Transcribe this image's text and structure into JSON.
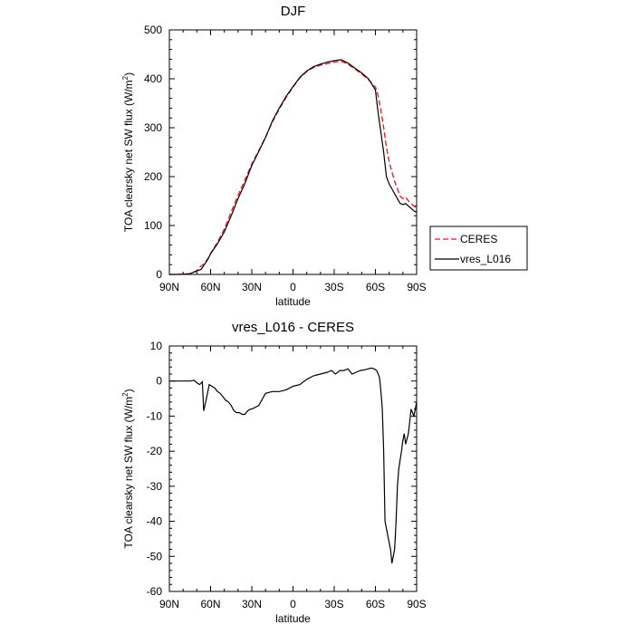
{
  "chart_data": [
    {
      "type": "line",
      "title": "DJF",
      "xlabel": "latitude",
      "ylabel": "TOA clearsky net SW flux (W/m",
      "ylabel_sup": "2",
      "ylabel_end": ")",
      "xlim": [
        90,
        -90
      ],
      "ylim": [
        0,
        500
      ],
      "xticks": [
        90,
        60,
        30,
        0,
        -30,
        -60,
        -90
      ],
      "xtick_labels": [
        "90N",
        "60N",
        "30N",
        "0",
        "30S",
        "60S",
        "90S"
      ],
      "yticks": [
        0,
        100,
        200,
        300,
        400,
        500
      ],
      "ytick_labels": [
        "0",
        "100",
        "200",
        "300",
        "400",
        "500"
      ],
      "legend_position": "right",
      "series": [
        {
          "name": "CERES",
          "color": "#e8141e",
          "dash": "dashed",
          "x": [
            90,
            85,
            80,
            75,
            70,
            67,
            65,
            62,
            60,
            55,
            50,
            45,
            40,
            35,
            30,
            25,
            20,
            15,
            10,
            5,
            0,
            -5,
            -10,
            -15,
            -20,
            -25,
            -30,
            -35,
            -40,
            -45,
            -50,
            -55,
            -60,
            -62,
            -64,
            -66,
            -68,
            -70,
            -72,
            -74,
            -76,
            -78,
            -80,
            -82,
            -84,
            -86,
            -88,
            -90
          ],
          "y": [
            0,
            0,
            0.5,
            1.5,
            8,
            17,
            21,
            32,
            43,
            66,
            93,
            128,
            162,
            193,
            226,
            253,
            281,
            312,
            338,
            362,
            383,
            402,
            415,
            423,
            428,
            431,
            434,
            436,
            430,
            420,
            410,
            398,
            383,
            365,
            335,
            300,
            260,
            230,
            210,
            190,
            175,
            160,
            155,
            158,
            150,
            145,
            140,
            135
          ]
        },
        {
          "name": "vres_L016",
          "color": "#000000",
          "dash": "solid",
          "x": [
            90,
            85,
            80,
            75,
            70,
            67,
            65,
            62,
            60,
            55,
            50,
            45,
            40,
            35,
            30,
            25,
            20,
            15,
            10,
            5,
            0,
            -5,
            -10,
            -15,
            -20,
            -25,
            -30,
            -35,
            -40,
            -45,
            -50,
            -55,
            -60,
            -62,
            -64,
            -66,
            -68,
            -70,
            -72,
            -74,
            -76,
            -78,
            -80,
            -82,
            -84,
            -86,
            -88,
            -90
          ],
          "y": [
            0,
            0,
            0.5,
            1.5,
            7,
            10,
            18,
            31,
            42,
            63,
            87,
            120,
            155,
            186,
            223,
            251,
            280,
            314,
            340,
            364,
            384,
            403,
            416,
            425,
            430,
            434,
            437,
            439,
            432,
            422,
            412,
            400,
            377,
            330,
            290,
            250,
            200,
            185,
            175,
            165,
            155,
            145,
            143,
            145,
            140,
            135,
            130,
            127
          ]
        }
      ]
    },
    {
      "type": "line",
      "title": "vres_L016 - CERES",
      "xlabel": "latitude",
      "ylabel": "TOA clearsky net SW flux (W/m",
      "ylabel_sup": "2",
      "ylabel_end": ")",
      "xlim": [
        90,
        -90
      ],
      "ylim": [
        -60,
        10
      ],
      "xticks": [
        90,
        60,
        30,
        0,
        -30,
        -60,
        -90
      ],
      "xtick_labels": [
        "90N",
        "60N",
        "30N",
        "0",
        "30S",
        "60S",
        "90S"
      ],
      "yticks": [
        10,
        0,
        -10,
        -20,
        -30,
        -40,
        -50,
        -60
      ],
      "ytick_labels": [
        "10",
        "0",
        "-10",
        "-20",
        "-30",
        "-40",
        "-50",
        "-60"
      ],
      "series": [
        {
          "name": "",
          "color": "#000000",
          "dash": "solid",
          "x": [
            90,
            85,
            80,
            75,
            72,
            70,
            68,
            66,
            65,
            63,
            61,
            59,
            57,
            55,
            53,
            51,
            49,
            47,
            45,
            43,
            41,
            39,
            37,
            35,
            33,
            31,
            30,
            25,
            20,
            15,
            10,
            5,
            0,
            -5,
            -10,
            -15,
            -20,
            -25,
            -28,
            -31,
            -34,
            -37,
            -40,
            -43,
            -46,
            -49,
            -52,
            -55,
            -57,
            -59,
            -61,
            -63,
            -64,
            -65,
            -66,
            -67,
            -69,
            -71,
            -72,
            -74,
            -75,
            -76,
            -77,
            -79,
            -80,
            -81,
            -82,
            -84,
            -86,
            -88,
            -90
          ],
          "y": [
            0,
            0,
            0,
            0,
            0.2,
            -0.5,
            -1,
            -0.2,
            -8.5,
            -5,
            -1,
            -1.5,
            -2,
            -3,
            -3.5,
            -4.5,
            -5.5,
            -6,
            -7,
            -8.5,
            -9,
            -9,
            -9.5,
            -9.5,
            -8.5,
            -8,
            -8,
            -7,
            -3.5,
            -3,
            -3,
            -2.5,
            -1.5,
            -1,
            0.5,
            1.5,
            2,
            2.5,
            3,
            2,
            3,
            3,
            3.5,
            2,
            2.5,
            3,
            3.2,
            3.5,
            3.7,
            3.5,
            3,
            1,
            -3,
            -8,
            -20,
            -40,
            -44,
            -48,
            -52,
            -48,
            -40,
            -30,
            -25,
            -20,
            -17,
            -15,
            -18,
            -15,
            -8,
            -10,
            -6
          ]
        }
      ]
    }
  ]
}
